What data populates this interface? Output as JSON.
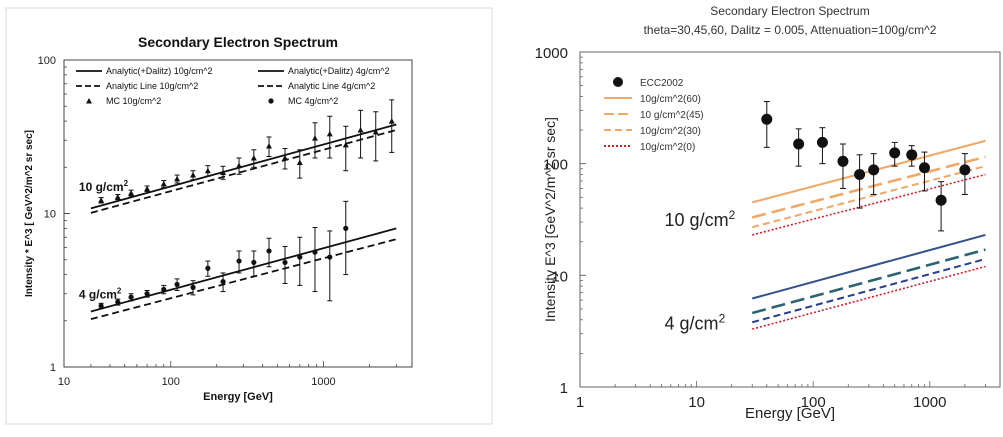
{
  "chart_data": [
    {
      "type": "scatter",
      "title": "Secondary Electron Spectrum",
      "subtitle": "",
      "xlabel": "Energy [GeV]",
      "ylabel": "Intensity * E^3 [ GeV^2/m^2 sr sec]",
      "xscale": "log",
      "yscale": "log",
      "xlim": [
        10,
        5000
      ],
      "ylim": [
        1,
        100
      ],
      "xticks": [
        "10",
        "100",
        "1000"
      ],
      "yticks": [
        "1",
        "10",
        "100"
      ],
      "grid": false,
      "legend_position": "top-left",
      "legend": [
        "Analytic(+Dalitz) 10g/cm^2",
        "Analytic(+Dalitz) 4g/cm^2",
        "Analytic Line 10g/cm^2",
        "Analytic Line 4g/cm^2",
        "MC 10g/cm^2",
        "MC 4g/cm^2"
      ],
      "annotations": [
        {
          "main": "10 g/cm",
          "sup": "2",
          "x": 30,
          "y": 14
        },
        {
          "main": "4 g/cm",
          "sup": "2",
          "x": 30,
          "y": 2.8
        }
      ],
      "lines": [
        {
          "name": "Analytic(+Dalitz) 10g/cm^2",
          "style": "solid",
          "x": [
            30,
            3000
          ],
          "y": [
            10.8,
            38
          ]
        },
        {
          "name": "Analytic Line 10g/cm^2",
          "style": "dashed",
          "x": [
            30,
            3000
          ],
          "y": [
            10.1,
            35
          ]
        },
        {
          "name": "Analytic(+Dalitz) 4g/cm^2",
          "style": "solid",
          "x": [
            30,
            3000
          ],
          "y": [
            2.3,
            8.0
          ]
        },
        {
          "name": "Analytic Line 4g/cm^2",
          "style": "dashed",
          "x": [
            30,
            3000
          ],
          "y": [
            2.05,
            6.8
          ]
        }
      ],
      "series": [
        {
          "name": "MC 10g/cm^2",
          "marker": "triangle",
          "x": [
            35,
            45,
            55,
            70,
            90,
            110,
            140,
            175,
            220,
            280,
            350,
            440,
            560,
            700,
            880,
            1100,
            1400,
            1750,
            2200,
            2800
          ],
          "y": [
            12.2,
            12.8,
            13.6,
            14.5,
            15.6,
            16.8,
            17.8,
            19.0,
            18.5,
            20.5,
            23.0,
            27.5,
            23.0,
            21.5,
            31.0,
            33.0,
            28.0,
            35.0,
            34.0,
            40.0
          ],
          "err": [
            0.5,
            0.5,
            0.6,
            0.6,
            0.8,
            1.0,
            1.2,
            1.5,
            1.8,
            2.5,
            3.0,
            4.0,
            3.5,
            4.5,
            8.0,
            10.0,
            9.0,
            12.0,
            12.0,
            15.0
          ]
        },
        {
          "name": "MC 4g/cm^2",
          "marker": "circle",
          "x": [
            35,
            45,
            55,
            70,
            90,
            110,
            140,
            175,
            220,
            280,
            350,
            440,
            560,
            700,
            880,
            1100,
            1400
          ],
          "y": [
            2.5,
            2.65,
            2.85,
            3.0,
            3.2,
            3.45,
            3.3,
            4.4,
            3.6,
            4.9,
            4.8,
            5.7,
            4.8,
            5.2,
            5.6,
            5.2,
            8.0
          ],
          "err": [
            0.1,
            0.12,
            0.15,
            0.15,
            0.2,
            0.3,
            0.35,
            0.5,
            0.5,
            0.8,
            0.9,
            1.2,
            1.3,
            1.8,
            2.5,
            2.5,
            4.0
          ]
        }
      ]
    },
    {
      "type": "scatter",
      "title": "Secondary Electron Spectrum",
      "subtitle": "theta=30,45,60,  Dalitz = 0.005, Attenuation=100g/cm^2",
      "xlabel": "Energy [GeV]",
      "ylabel": "Intensity E^3 [GeV^2/m^2 sr sec]",
      "xscale": "log",
      "yscale": "log",
      "xlim": [
        1,
        4000
      ],
      "ylim": [
        1,
        1000
      ],
      "xticks": [
        "1",
        "10",
        "100",
        "1000"
      ],
      "yticks": [
        "1",
        "10",
        "100",
        "1000"
      ],
      "grid": false,
      "legend_position": "top-left",
      "legend": [
        "ECC2002",
        "10g/cm^2(60)",
        "10 g/cm^2(45)",
        "10g/cm^2(30)",
        "10g/cm^2(0)"
      ],
      "annotations": [
        {
          "main": "10 g/cm",
          "sup": "2",
          "x": 7,
          "y": 32
        },
        {
          "main": "4 g/cm",
          "sup": "2",
          "x": 7,
          "y": 3.8
        }
      ],
      "colors": {
        "c60": "#f0a868",
        "c45": "#f0a868",
        "c30": "#f0a868",
        "c0": "#d0202a",
        "blue": "#34508c",
        "teal": "#2a6373",
        "navy": "#2a3c8c",
        "dots": "#c62a2a"
      },
      "lines": [
        {
          "name": "10g/cm^2(60)",
          "style": "solid",
          "color_key": "c60",
          "x": [
            30,
            3000
          ],
          "y": [
            45,
            160
          ]
        },
        {
          "name": "10 g/cm^2(45)",
          "style": "longdash",
          "color_key": "c45",
          "x": [
            30,
            3000
          ],
          "y": [
            33,
            115
          ]
        },
        {
          "name": "10g/cm^2(30)",
          "style": "dashed",
          "color_key": "c30",
          "x": [
            30,
            3000
          ],
          "y": [
            27,
            95
          ]
        },
        {
          "name": "10g/cm^2(0)",
          "style": "dotted",
          "color_key": "c0",
          "x": [
            30,
            3000
          ],
          "y": [
            23,
            80
          ]
        },
        {
          "name": "",
          "style": "solid",
          "color_key": "blue",
          "x": [
            30,
            3000
          ],
          "y": [
            6.2,
            23
          ]
        },
        {
          "name": "",
          "style": "longdash",
          "color_key": "teal",
          "x": [
            30,
            3000
          ],
          "y": [
            4.6,
            17
          ]
        },
        {
          "name": "",
          "style": "dashed",
          "color_key": "navy",
          "x": [
            30,
            3000
          ],
          "y": [
            3.8,
            14
          ]
        },
        {
          "name": "",
          "style": "dotted",
          "color_key": "c0",
          "x": [
            30,
            3000
          ],
          "y": [
            3.3,
            12
          ]
        }
      ],
      "series": [
        {
          "name": "ECC2002",
          "marker": "circle",
          "x": [
            40,
            75,
            120,
            180,
            250,
            330,
            500,
            700,
            900,
            1250,
            2000
          ],
          "y": [
            250,
            150,
            155,
            105,
            80,
            88,
            125,
            120,
            92,
            47,
            88
          ],
          "err_low": [
            110,
            55,
            55,
            45,
            40,
            35,
            30,
            25,
            35,
            22,
            35
          ],
          "err_high": [
            110,
            55,
            55,
            45,
            40,
            35,
            30,
            25,
            35,
            22,
            35
          ]
        }
      ]
    }
  ]
}
